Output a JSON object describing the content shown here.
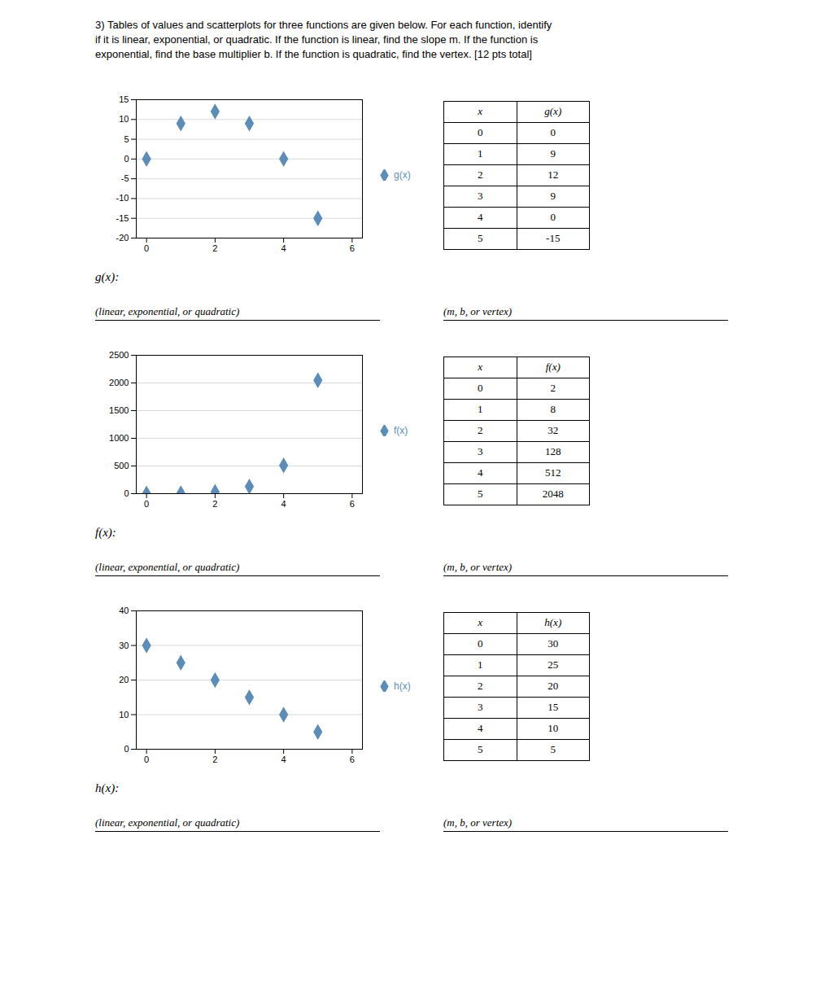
{
  "title": "3)  Tables of values and scatterplots for three functions are given below. For each function, identify\nif it is linear, exponential, or quadratic. If the function is linear, find the slope m. If the function is\nexponential, find the base multiplier b. If the function is quadratic, find the vertex.  [12 pts total]",
  "chart_data": [
    {
      "type": "scatter",
      "x": [
        0,
        1,
        2,
        3,
        4,
        5
      ],
      "series": [
        {
          "name": "g(x)",
          "color": "#5b8db8",
          "marker": "diamond",
          "values": [
            0,
            9,
            12,
            9,
            0,
            -15
          ]
        }
      ],
      "xlim": [
        -0.3,
        6.3
      ],
      "ylim": [
        -20,
        15
      ],
      "xticks": [
        0,
        2,
        4,
        6
      ],
      "yticks": [
        -20,
        -15,
        -10,
        -5,
        0,
        5,
        10,
        15
      ],
      "grid": "y",
      "legend": "right",
      "table_headers": [
        "x",
        "g(x)"
      ],
      "annotations": [
        "g(x):",
        "(linear, exponential, or quadratic)",
        "(m, b, or vertex)"
      ]
    },
    {
      "type": "scatter",
      "x": [
        0,
        1,
        2,
        3,
        4,
        5
      ],
      "series": [
        {
          "name": "f(x)",
          "color": "#5b8db8",
          "marker": "diamond",
          "values": [
            2,
            8,
            32,
            128,
            512,
            2048
          ]
        }
      ],
      "xlim": [
        -0.3,
        6.3
      ],
      "ylim": [
        0,
        2500
      ],
      "xticks": [
        0,
        2,
        4,
        6
      ],
      "yticks": [
        0,
        500,
        1000,
        1500,
        2000,
        2500
      ],
      "grid": "y",
      "legend": "right",
      "table_headers": [
        "x",
        "f(x)"
      ],
      "annotations": [
        "f(x):",
        "(linear, exponential, or quadratic)",
        "(m, b, or vertex)"
      ]
    },
    {
      "type": "scatter",
      "x": [
        0,
        1,
        2,
        3,
        4,
        5
      ],
      "series": [
        {
          "name": "h(x)",
          "color": "#5b8db8",
          "marker": "diamond",
          "values": [
            30,
            25,
            20,
            15,
            10,
            5
          ]
        }
      ],
      "xlim": [
        -0.3,
        6.3
      ],
      "ylim": [
        0,
        40
      ],
      "xticks": [
        0,
        2,
        4,
        6
      ],
      "yticks": [
        0,
        10,
        20,
        30,
        40
      ],
      "grid": "y",
      "legend": "right",
      "table_headers": [
        "x",
        "h(x)"
      ],
      "annotations": [
        "h(x):",
        "(linear, exponential, or quadratic)",
        "(m, b, or vertex)"
      ]
    }
  ]
}
